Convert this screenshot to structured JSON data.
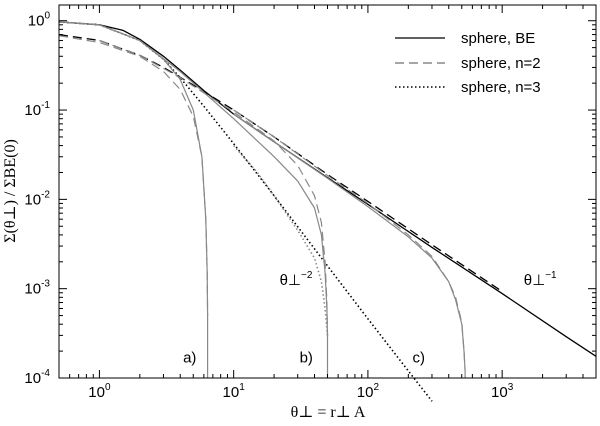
{
  "chart_data": {
    "type": "line",
    "xlabel": "θ⊥ = r⊥ A",
    "ylabel": "Σ(θ⊥) / ΣBE(0)",
    "xscale": "log",
    "yscale": "log",
    "xlim": [
      0.5,
      5000
    ],
    "ylim": [
      0.0001,
      1.5
    ],
    "x_ticks": [
      {
        "base": "10",
        "exp": "0",
        "value": 1
      },
      {
        "base": "10",
        "exp": "1",
        "value": 10
      },
      {
        "base": "10",
        "exp": "2",
        "value": 100
      },
      {
        "base": "10",
        "exp": "3",
        "value": 1000
      }
    ],
    "y_ticks": [
      {
        "base": "10",
        "exp": "0",
        "value": 1
      },
      {
        "base": "10",
        "exp": "-1",
        "value": 0.1
      },
      {
        "base": "10",
        "exp": "-2",
        "value": 0.01
      },
      {
        "base": "10",
        "exp": "-3",
        "value": 0.001
      },
      {
        "base": "10",
        "exp": "-4",
        "value": 0.0001
      }
    ],
    "legend": {
      "position": "top-right",
      "entries": [
        {
          "label": "sphere, BE",
          "style": "solid"
        },
        {
          "label": "sphere, n=2",
          "style": "dashed"
        },
        {
          "label": "sphere, n=3",
          "style": "dotted"
        }
      ]
    },
    "annotations": [
      {
        "text": "a)",
        "x": 4.2,
        "y": 0.00015
      },
      {
        "text": "b)",
        "x": 31,
        "y": 0.00015
      },
      {
        "text": "c)",
        "x": 215,
        "y": 0.00015
      },
      {
        "text": "θ⊥",
        "sup": "−2",
        "x": 22,
        "y": 0.0011
      },
      {
        "text": "θ⊥",
        "sup": "−1",
        "x": 1450,
        "y": 0.0011
      }
    ],
    "colors": {
      "black": "#000000",
      "gray": "#888888"
    },
    "series": [
      {
        "name": "sphere, BE",
        "style": "solid",
        "color": "#000000",
        "x": [
          0.5,
          1,
          1.5,
          2,
          3,
          4,
          6,
          10,
          20,
          50,
          100,
          300,
          1000,
          3000,
          5000
        ],
        "y": [
          0.97,
          0.9,
          0.78,
          0.62,
          0.4,
          0.28,
          0.165,
          0.09,
          0.044,
          0.0175,
          0.0088,
          0.0029,
          0.00088,
          0.00029,
          0.000175
        ]
      },
      {
        "name": "sphere, n=2",
        "style": "dashed",
        "color": "#000000",
        "x": [
          0.5,
          1,
          2,
          3,
          5,
          10,
          20,
          50,
          100,
          300,
          1000
        ],
        "y": [
          0.7,
          0.6,
          0.41,
          0.3,
          0.19,
          0.1,
          0.05,
          0.019,
          0.0095,
          0.0031,
          0.00093
        ]
      },
      {
        "name": "sphere, n=3",
        "style": "dotted",
        "color": "#000000",
        "x": [
          0.5,
          1,
          2,
          3,
          4,
          6,
          10,
          20,
          50,
          100,
          200,
          300
        ],
        "y": [
          0.97,
          0.9,
          0.6,
          0.37,
          0.23,
          0.11,
          0.042,
          0.011,
          0.0018,
          0.00046,
          0.00012,
          5.5e-05
        ]
      },
      {
        "name": "a) BE",
        "style": "solid",
        "color": "#888888",
        "x": [
          0.5,
          1,
          2,
          3,
          4,
          5,
          5.8,
          6.2,
          6.35,
          6.4,
          6.4
        ],
        "y": [
          0.97,
          0.9,
          0.6,
          0.37,
          0.22,
          0.1,
          0.03,
          0.006,
          0.0015,
          0.0005,
          0.0001
        ]
      },
      {
        "name": "a) n=2",
        "style": "dashed",
        "color": "#888888",
        "x": [
          0.5,
          1,
          2,
          3,
          4,
          5,
          5.8,
          6.2,
          6.35,
          6.4
        ],
        "y": [
          0.68,
          0.57,
          0.4,
          0.27,
          0.17,
          0.085,
          0.03,
          0.006,
          0.0015,
          0.0005
        ]
      },
      {
        "name": "b) BE",
        "style": "solid",
        "color": "#888888",
        "x": [
          0.5,
          1,
          2,
          4,
          10,
          20,
          30,
          40,
          45,
          48,
          49.5,
          50,
          50
        ],
        "y": [
          0.97,
          0.9,
          0.6,
          0.27,
          0.08,
          0.03,
          0.016,
          0.008,
          0.004,
          0.0015,
          0.0006,
          0.0003,
          0.0001
        ]
      },
      {
        "name": "b) n=2",
        "style": "dashed",
        "color": "#888888",
        "x": [
          1,
          2,
          4,
          10,
          20,
          30,
          40,
          45,
          48,
          49.5,
          50
        ],
        "y": [
          0.6,
          0.41,
          0.23,
          0.095,
          0.045,
          0.024,
          0.011,
          0.0055,
          0.002,
          0.0007,
          0.0003
        ]
      },
      {
        "name": "b) n=3",
        "style": "dotted",
        "color": "#888888",
        "x": [
          10,
          15,
          20,
          30,
          40,
          45,
          48,
          50
        ],
        "y": [
          0.04,
          0.02,
          0.011,
          0.0045,
          0.0022,
          0.0012,
          0.0006,
          0.0003
        ]
      },
      {
        "name": "c) BE",
        "style": "solid",
        "color": "#888888",
        "x": [
          10,
          20,
          50,
          100,
          200,
          300,
          400,
          450,
          500,
          520,
          530,
          530
        ],
        "y": [
          0.09,
          0.044,
          0.0172,
          0.0083,
          0.0038,
          0.0022,
          0.0012,
          0.00075,
          0.0004,
          0.0002,
          0.00012,
          0.0001
        ]
      },
      {
        "name": "c) n=2",
        "style": "dashed",
        "color": "#888888",
        "x": [
          10,
          20,
          50,
          100,
          200,
          300,
          400,
          450,
          500,
          520,
          530
        ],
        "y": [
          0.1,
          0.05,
          0.0185,
          0.009,
          0.004,
          0.0023,
          0.0012,
          0.0008,
          0.00042,
          0.0002,
          0.00012
        ]
      }
    ]
  }
}
